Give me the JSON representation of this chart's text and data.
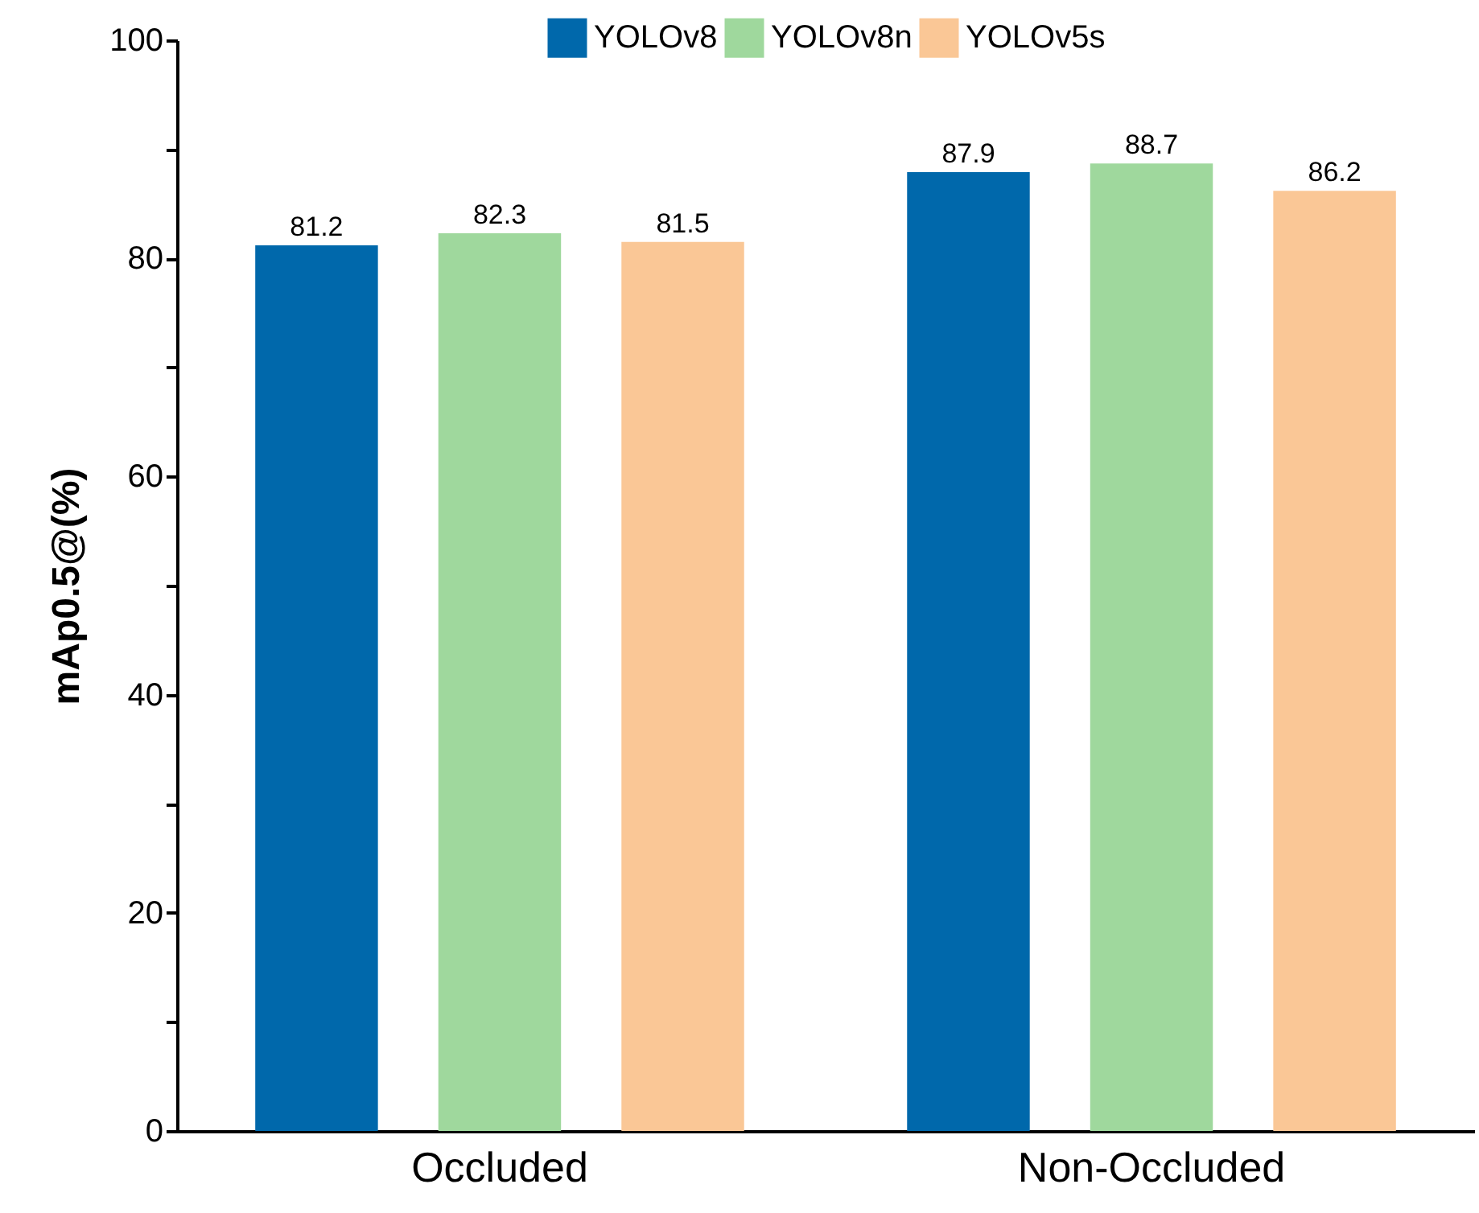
{
  "chart_data": {
    "type": "bar",
    "ylabel": "mAp0.5@(%)",
    "categories": [
      "Occluded",
      "Non-Occluded"
    ],
    "series": [
      {
        "name": "YOLOv8",
        "color": "#0068ab",
        "values": [
          81.2,
          87.9
        ]
      },
      {
        "name": "YOLOv8n",
        "color": "#9fd89d",
        "values": [
          82.3,
          88.7
        ]
      },
      {
        "name": "YOLOv5s",
        "color": "#fac796",
        "values": [
          81.5,
          86.2
        ]
      }
    ],
    "ylim": [
      0,
      100
    ],
    "yticks": [
      0,
      {
        "value": 10,
        "label": null
      },
      20,
      {
        "value": 30,
        "label": null
      },
      40,
      {
        "value": 50,
        "label": null
      },
      60,
      {
        "value": 70,
        "label": null
      },
      80,
      {
        "value": 90,
        "label": null
      },
      100
    ],
    "data_labels": true,
    "legend": "top",
    "grid": false
  }
}
